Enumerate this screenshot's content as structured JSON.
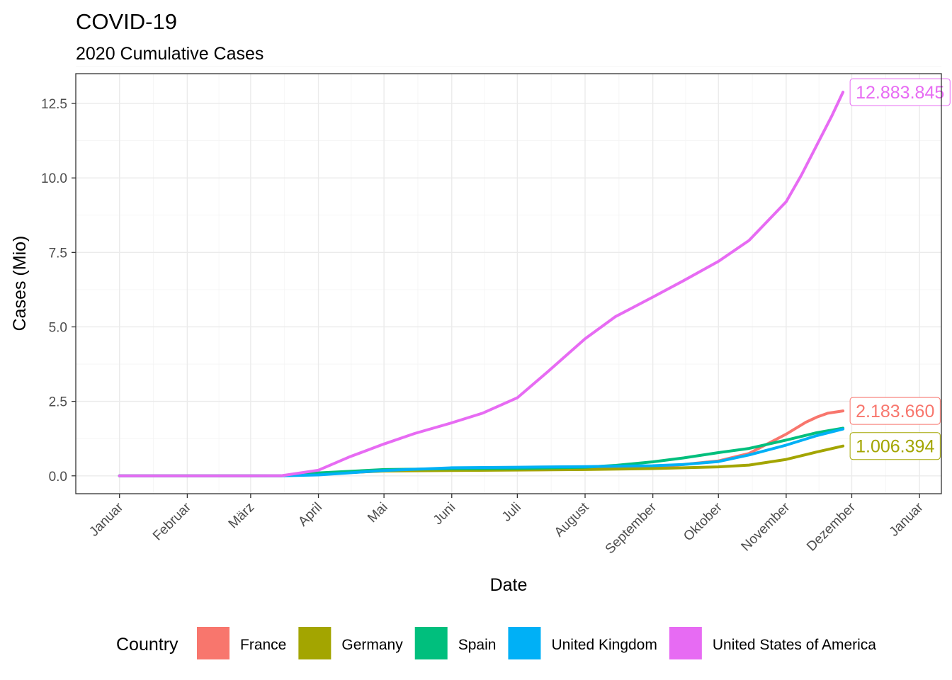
{
  "chart_data": {
    "type": "line",
    "title": "COVID-19",
    "subtitle": "2020 Cumulative Cases",
    "xlabel": "Date",
    "ylabel": "Cases (Mio)",
    "ylim": [
      -0.6,
      13.5
    ],
    "yticks": [
      0.0,
      2.5,
      5.0,
      7.5,
      10.0,
      12.5
    ],
    "ytick_labels": [
      "0.0",
      "2.5",
      "5.0",
      "7.5",
      "10.0",
      "12.5"
    ],
    "xlim": [
      "2019-12-12",
      "2021-01-11"
    ],
    "xticks": [
      "2020-01-01",
      "2020-02-01",
      "2020-03-01",
      "2020-04-01",
      "2020-05-01",
      "2020-06-01",
      "2020-07-01",
      "2020-08-01",
      "2020-09-01",
      "2020-10-01",
      "2020-11-01",
      "2020-12-01",
      "2021-01-01"
    ],
    "xtick_labels": [
      "Januar",
      "Februar",
      "März",
      "April",
      "Mai",
      "Juni",
      "Juli",
      "August",
      "September",
      "Oktober",
      "November",
      "Dezember",
      "Januar"
    ],
    "grid": true,
    "legend": {
      "title": "Country",
      "position": "bottom"
    },
    "series": [
      {
        "name": "France",
        "color": "#F8766D",
        "x": [
          "2020-01-01",
          "2020-03-01",
          "2020-03-15",
          "2020-04-01",
          "2020-05-01",
          "2020-06-01",
          "2020-07-01",
          "2020-08-01",
          "2020-09-01",
          "2020-09-15",
          "2020-10-01",
          "2020-10-15",
          "2020-11-01",
          "2020-11-10",
          "2020-11-15",
          "2020-11-20",
          "2020-11-27"
        ],
        "values": [
          0,
          0,
          0.005,
          0.05,
          0.17,
          0.19,
          0.2,
          0.22,
          0.29,
          0.38,
          0.5,
          0.75,
          1.4,
          1.8,
          1.97,
          2.1,
          2.18
        ],
        "end_label": "2.183.660"
      },
      {
        "name": "Germany",
        "color": "#A3A500",
        "x": [
          "2020-01-01",
          "2020-03-01",
          "2020-03-15",
          "2020-04-01",
          "2020-05-01",
          "2020-06-01",
          "2020-07-01",
          "2020-08-01",
          "2020-09-01",
          "2020-10-01",
          "2020-10-15",
          "2020-11-01",
          "2020-11-15",
          "2020-11-27"
        ],
        "values": [
          0,
          0,
          0.005,
          0.07,
          0.16,
          0.18,
          0.195,
          0.21,
          0.245,
          0.3,
          0.36,
          0.55,
          0.8,
          1.0
        ],
        "end_label": "1.006.394"
      },
      {
        "name": "Spain",
        "color": "#00BF7D",
        "x": [
          "2020-01-01",
          "2020-03-01",
          "2020-03-15",
          "2020-04-01",
          "2020-05-01",
          "2020-06-01",
          "2020-07-01",
          "2020-08-01",
          "2020-08-15",
          "2020-09-01",
          "2020-09-15",
          "2020-10-01",
          "2020-10-15",
          "2020-11-01",
          "2020-11-15",
          "2020-11-27"
        ],
        "values": [
          0,
          0,
          0.005,
          0.1,
          0.21,
          0.24,
          0.25,
          0.29,
          0.35,
          0.47,
          0.6,
          0.78,
          0.92,
          1.2,
          1.45,
          1.6
        ],
        "end_label": ""
      },
      {
        "name": "United Kingdom",
        "color": "#00B0F6",
        "x": [
          "2020-01-01",
          "2020-03-01",
          "2020-03-15",
          "2020-04-01",
          "2020-05-01",
          "2020-06-01",
          "2020-07-01",
          "2020-08-01",
          "2020-09-01",
          "2020-09-15",
          "2020-10-01",
          "2020-10-15",
          "2020-11-01",
          "2020-11-15",
          "2020-11-27"
        ],
        "values": [
          0,
          0,
          0.002,
          0.03,
          0.18,
          0.27,
          0.29,
          0.31,
          0.34,
          0.38,
          0.48,
          0.7,
          1.03,
          1.35,
          1.57
        ],
        "end_label": ""
      },
      {
        "name": "United States of America",
        "color": "#E76BF3",
        "x": [
          "2020-01-01",
          "2020-03-01",
          "2020-03-15",
          "2020-04-01",
          "2020-04-15",
          "2020-05-01",
          "2020-05-15",
          "2020-06-01",
          "2020-06-15",
          "2020-07-01",
          "2020-07-15",
          "2020-08-01",
          "2020-08-15",
          "2020-09-01",
          "2020-09-15",
          "2020-10-01",
          "2020-10-15",
          "2020-11-01",
          "2020-11-08",
          "2020-11-15",
          "2020-11-22",
          "2020-11-27"
        ],
        "values": [
          0,
          0,
          0.003,
          0.19,
          0.63,
          1.07,
          1.42,
          1.78,
          2.1,
          2.62,
          3.5,
          4.6,
          5.35,
          6.0,
          6.55,
          7.2,
          7.9,
          9.2,
          10.1,
          11.1,
          12.1,
          12.88
        ],
        "end_label": "12.883.845"
      }
    ]
  }
}
